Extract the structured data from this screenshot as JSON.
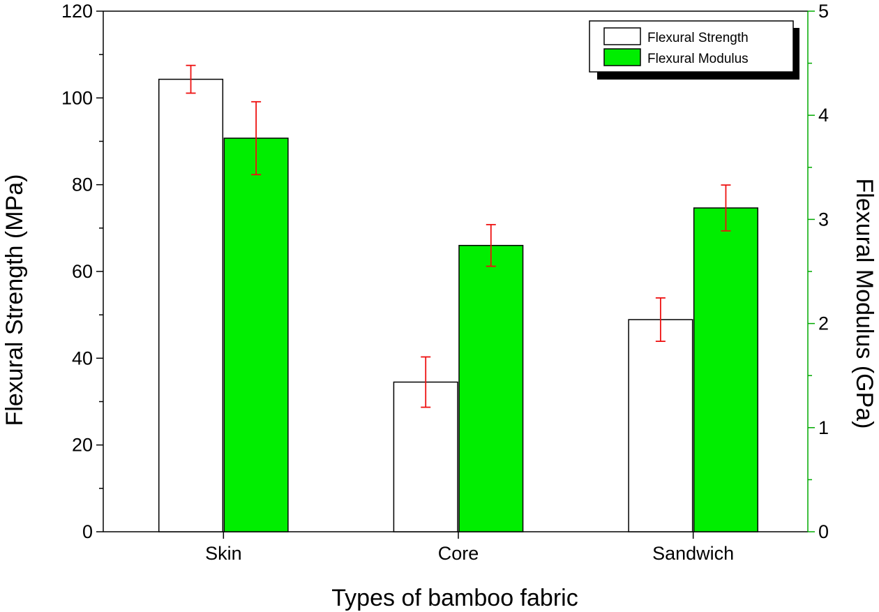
{
  "chart_data": {
    "type": "bar",
    "title": "",
    "xlabel": "Types of bamboo fabric",
    "categories": [
      "Skin",
      "Core",
      "Sandwich"
    ],
    "y_left": {
      "label": "Flexural Strength (MPa)",
      "lim": [
        0,
        120
      ],
      "ticks": [
        "0",
        "20",
        "40",
        "60",
        "80",
        "100",
        "120"
      ]
    },
    "y_right": {
      "label": "Flexural Modulus (GPa)",
      "lim": [
        0,
        5
      ],
      "ticks": [
        "0",
        "1",
        "2",
        "3",
        "4",
        "5"
      ]
    },
    "series": [
      {
        "name": "Flexural Strength",
        "axis": "left",
        "values": [
          104.3,
          34.5,
          48.9
        ],
        "error": [
          3.2,
          5.8,
          5.0
        ],
        "color": "#ffffff"
      },
      {
        "name": "Flexural Modulus",
        "axis": "right",
        "values": [
          3.78,
          2.75,
          3.11
        ],
        "error": [
          0.35,
          0.2,
          0.22
        ],
        "color": "#00ee00"
      }
    ],
    "errorbar_color": "#ee1111",
    "right_axis_color": "#00aa00",
    "legend_position": "top-right",
    "grid": false
  }
}
